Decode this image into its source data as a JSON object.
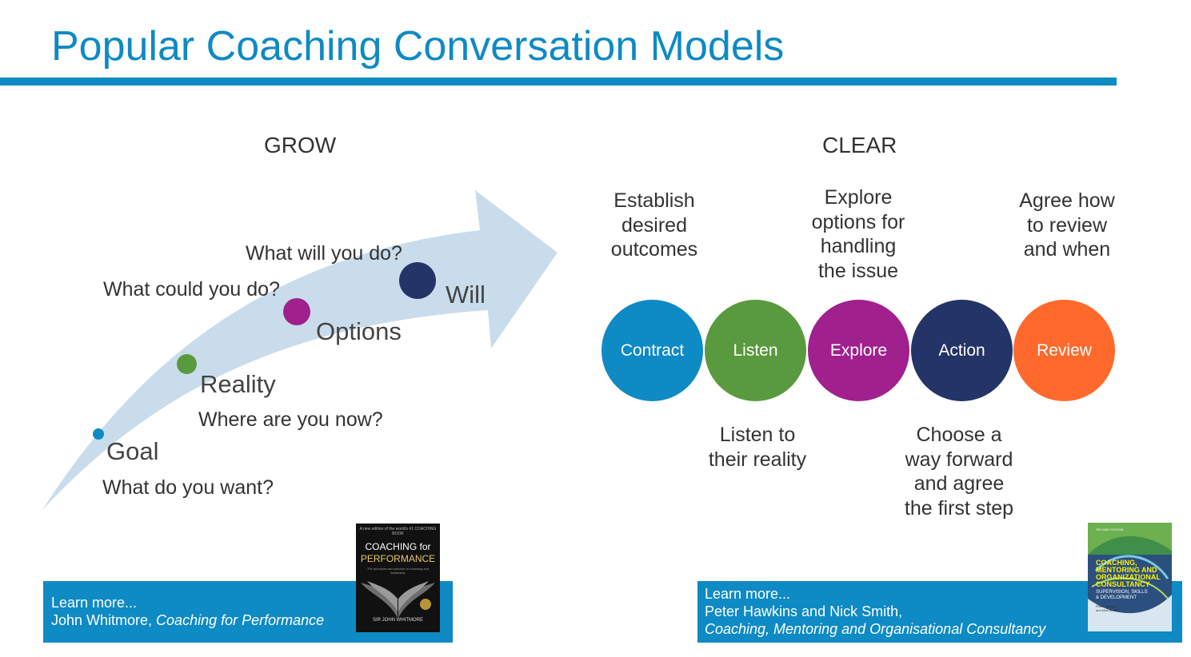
{
  "title": "Popular Coaching Conversation Models",
  "grow": {
    "heading": "GROW",
    "stages": [
      {
        "name": "Goal",
        "question": "What do you want?",
        "color": "#0e8ac4"
      },
      {
        "name": "Reality",
        "question": "Where are you now?",
        "color": "#5a9a3e"
      },
      {
        "name": "Options",
        "question": "What could you do?",
        "color": "#a0208e"
      },
      {
        "name": "Will",
        "question": "What will you do?",
        "color": "#243466"
      }
    ],
    "arrow_color": "#c9dceb",
    "learn_more": {
      "line1": "Learn more...",
      "author": "John Whitmore, ",
      "book_title": "Coaching for Performance"
    },
    "book_cover": {
      "top_text": "A new edition of the world's #1 COACHING BOOK",
      "title_line1": "COACHING for",
      "title_line2": "PERFORMANCE",
      "subtitle": "The principles and practice of coaching and leadership",
      "author": "SIR JOHN WHITMORE"
    }
  },
  "clear": {
    "heading": "CLEAR",
    "stages": [
      {
        "label": "Contract",
        "color": "#0e8ac4"
      },
      {
        "label": "Listen",
        "color": "#5a9a3e"
      },
      {
        "label": "Explore",
        "color": "#a0208e"
      },
      {
        "label": "Action",
        "color": "#243466"
      },
      {
        "label": "Review",
        "color": "#ff6a2c"
      }
    ],
    "descriptions": {
      "contract": [
        "Establish",
        "desired",
        "outcomes"
      ],
      "listen": [
        "Listen to",
        "their reality"
      ],
      "explore": [
        "Explore",
        "options for",
        "handling",
        "the issue"
      ],
      "action": [
        "Choose a",
        "way forward",
        "and agree",
        "the first step"
      ],
      "review": [
        "Agree how",
        "to review",
        "and when"
      ]
    },
    "learn_more": {
      "line1": "Learn more...",
      "authors": "Peter Hawkins and Nick Smith,",
      "book_title": "Coaching, Mentoring and Organisational Consultancy"
    },
    "book_cover": {
      "edition": "SECOND EDITION",
      "title_lines": [
        "COACHING,",
        "MENTORING AND",
        "ORGANIZATIONAL",
        "CONSULTANCY"
      ],
      "subtitle_lines": [
        "SUPERVISION, SKILLS",
        "& DEVELOPMENT"
      ],
      "authors_lines": [
        "Peter Hawkins",
        "and Nick Smith"
      ]
    }
  }
}
